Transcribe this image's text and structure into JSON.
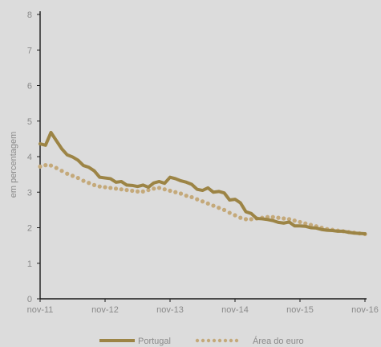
{
  "colors": {
    "background": "#dcdcdc",
    "axis": "#1a1a1a",
    "portugal": "#9c8445",
    "euro_area": "#c4a97a",
    "text": "#8a8a8a"
  },
  "chart_data": {
    "type": "line",
    "title": "",
    "xlabel": "",
    "ylabel": "em percentagem",
    "ylim": [
      0,
      8
    ],
    "yticks": [
      "0",
      "1",
      "2",
      "3",
      "4",
      "5",
      "6",
      "7",
      "8"
    ],
    "xtick_labels": [
      "nov-11",
      "nov-12",
      "nov-13",
      "nov-14",
      "nov-15",
      "nov-16"
    ],
    "x_months_count": 61,
    "grid": false,
    "legend": "bottom-center",
    "series": [
      {
        "name": "Portugal",
        "style": "solid",
        "values": [
          4.36,
          4.32,
          4.68,
          4.45,
          4.22,
          4.05,
          3.99,
          3.9,
          3.75,
          3.7,
          3.6,
          3.42,
          3.4,
          3.38,
          3.28,
          3.3,
          3.2,
          3.19,
          3.16,
          3.2,
          3.14,
          3.26,
          3.3,
          3.25,
          3.42,
          3.38,
          3.32,
          3.28,
          3.22,
          3.08,
          3.05,
          3.12,
          3.0,
          3.02,
          2.98,
          2.78,
          2.8,
          2.7,
          2.45,
          2.4,
          2.26,
          2.25,
          2.23,
          2.2,
          2.15,
          2.13,
          2.16,
          2.05,
          2.05,
          2.04,
          2.0,
          1.99,
          1.95,
          1.93,
          1.92,
          1.9,
          1.9,
          1.87,
          1.85,
          1.84,
          1.83
        ]
      },
      {
        "name": "Área do euro",
        "style": "dotted",
        "values": [
          3.72,
          3.76,
          3.75,
          3.68,
          3.6,
          3.52,
          3.46,
          3.4,
          3.32,
          3.26,
          3.2,
          3.16,
          3.14,
          3.12,
          3.1,
          3.08,
          3.06,
          3.04,
          3.02,
          3.02,
          3.06,
          3.1,
          3.12,
          3.08,
          3.04,
          3.0,
          2.96,
          2.9,
          2.86,
          2.8,
          2.74,
          2.68,
          2.62,
          2.56,
          2.5,
          2.42,
          2.35,
          2.28,
          2.24,
          2.24,
          2.26,
          2.28,
          2.3,
          2.3,
          2.28,
          2.26,
          2.24,
          2.2,
          2.16,
          2.12,
          2.08,
          2.04,
          2.0,
          1.96,
          1.94,
          1.92,
          1.9,
          1.88,
          1.86,
          1.84,
          1.82
        ]
      }
    ]
  }
}
